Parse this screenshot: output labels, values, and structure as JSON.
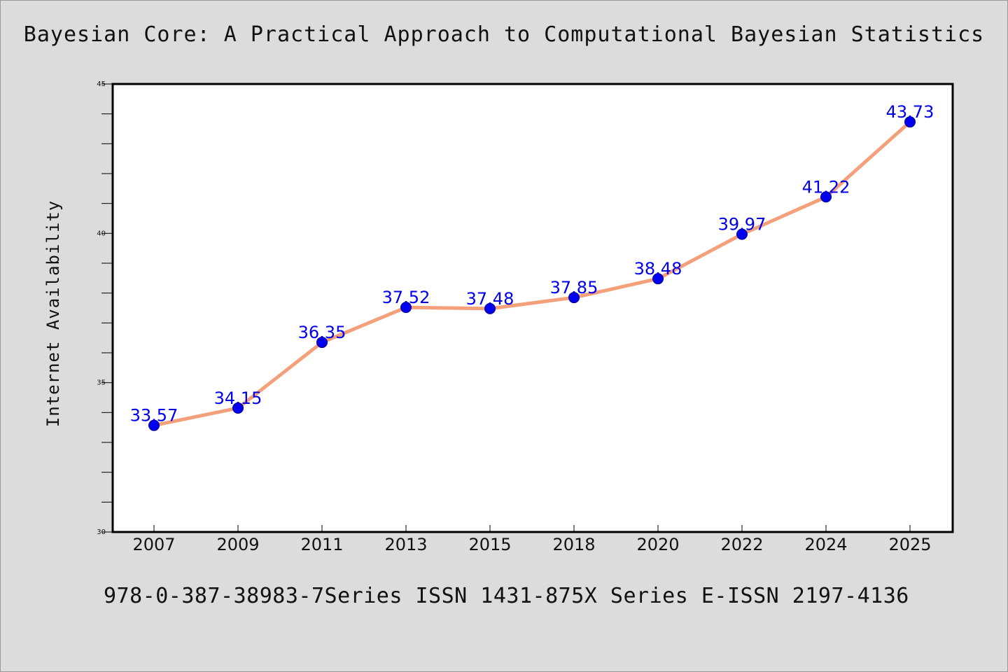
{
  "header": {
    "title": "Bayesian Core: A Practical Approach to Computational Bayesian Statistics"
  },
  "footer": {
    "text": "978-0-387-38983-7Series ISSN 1431-875X Series E-ISSN 2197-4136"
  },
  "colors": {
    "background": "#dcdcdc",
    "plot_background": "#ffffff",
    "line": "#f4a07a",
    "marker": "#0000ee",
    "data_label": "#0000ee"
  },
  "chart_data": {
    "type": "line",
    "title": "Bayesian Core: A Practical Approach to Computational Bayesian Statistics",
    "xlabel": "",
    "ylabel": "Internet Availability",
    "categories": [
      "2007",
      "2009",
      "2011",
      "2013",
      "2015",
      "2018",
      "2020",
      "2022",
      "2024",
      "2025"
    ],
    "series": [
      {
        "values": [
          33.57,
          34.15,
          36.35,
          37.52,
          37.48,
          37.85,
          38.48,
          39.97,
          41.22,
          43.73
        ],
        "data_labels": [
          "33.57",
          "34.15",
          "36.35",
          "37.52",
          "37.48",
          "37.85",
          "38.48",
          "39.97",
          "41.22",
          "43.73"
        ]
      }
    ],
    "ylim": [
      30,
      45
    ],
    "yticks": [
      30,
      35,
      40,
      45
    ],
    "yminor_step": 1,
    "grid": false,
    "legend": "none"
  }
}
